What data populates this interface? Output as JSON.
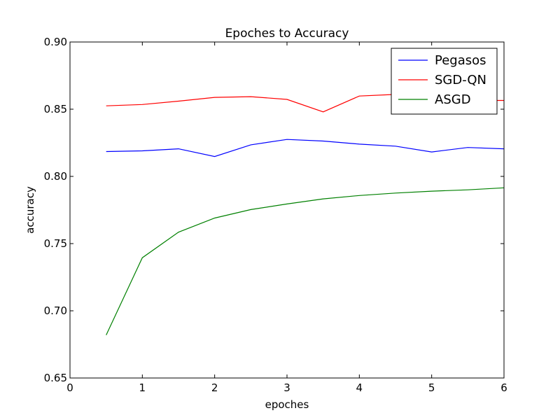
{
  "chart_data": {
    "type": "line",
    "title": "Epoches to Accuracy",
    "xlabel": "epoches",
    "ylabel": "accuracy",
    "xlim": [
      0,
      6
    ],
    "ylim": [
      0.65,
      0.9
    ],
    "xticks": [
      "0",
      "1",
      "2",
      "3",
      "4",
      "5",
      "6"
    ],
    "yticks": [
      "0.65",
      "0.70",
      "0.75",
      "0.80",
      "0.85",
      "0.90"
    ],
    "grid": false,
    "legend_position": "top-right",
    "x": [
      0.5,
      1.0,
      1.5,
      2.0,
      2.5,
      3.0,
      3.5,
      4.0,
      4.5,
      5.0,
      5.5,
      6.0
    ],
    "series": [
      {
        "name": "Pegasos",
        "color": "#0000ff",
        "values": [
          0.8185,
          0.819,
          0.8205,
          0.8148,
          0.8235,
          0.8275,
          0.8263,
          0.824,
          0.8225,
          0.8182,
          0.8215,
          0.8205
        ]
      },
      {
        "name": "SGD-QN",
        "color": "#ff0000",
        "values": [
          0.8525,
          0.8535,
          0.856,
          0.8588,
          0.8593,
          0.8573,
          0.848,
          0.8598,
          0.861,
          0.8605,
          0.8565,
          0.8565
        ]
      },
      {
        "name": "ASGD",
        "color": "#008000",
        "values": [
          0.682,
          0.7395,
          0.7585,
          0.769,
          0.7753,
          0.7795,
          0.7833,
          0.7858,
          0.7876,
          0.789,
          0.79,
          0.7915
        ]
      }
    ]
  }
}
